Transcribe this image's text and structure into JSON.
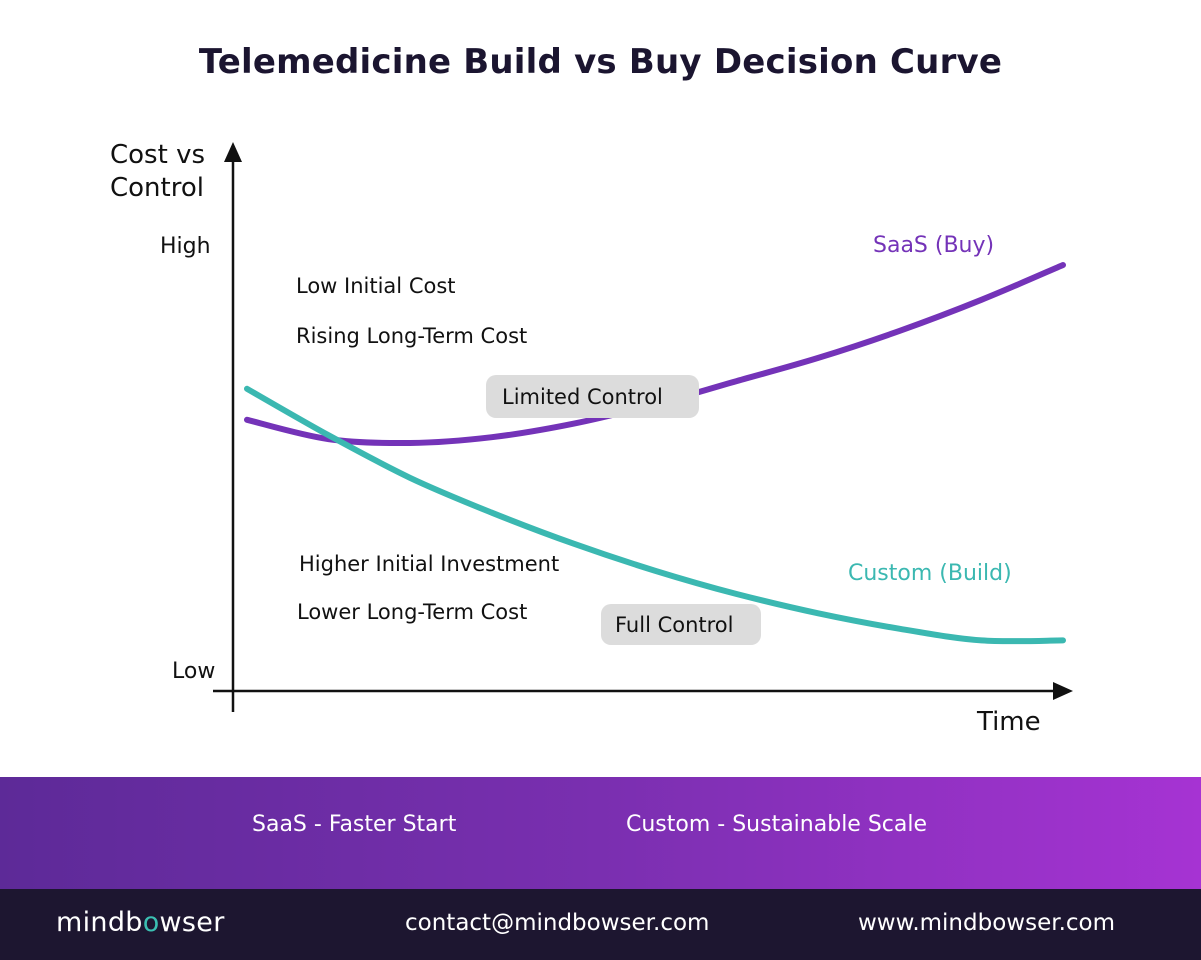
{
  "title": "Telemedicine Build vs Buy Decision Curve",
  "chart_data": {
    "type": "line",
    "ylabel_line1": "Cost vs",
    "ylabel_line2": "Control",
    "xlabel": "Time",
    "ytick_high": "High",
    "ytick_low": "Low",
    "series": [
      {
        "name": "SaaS (Buy)",
        "color": "#7433b8",
        "points": [
          [
            0,
            0.6
          ],
          [
            0.1,
            0.55
          ],
          [
            0.2,
            0.54
          ],
          [
            0.3,
            0.555
          ],
          [
            0.4,
            0.59
          ],
          [
            0.5,
            0.64
          ],
          [
            0.6,
            0.7
          ],
          [
            0.7,
            0.76
          ],
          [
            0.8,
            0.83
          ],
          [
            0.9,
            0.91
          ],
          [
            1.0,
            1.0
          ]
        ]
      },
      {
        "name": "Custom (Build)",
        "color": "#3bb8b1",
        "points": [
          [
            0,
            0.68
          ],
          [
            0.1,
            0.56
          ],
          [
            0.2,
            0.45
          ],
          [
            0.3,
            0.36
          ],
          [
            0.4,
            0.28
          ],
          [
            0.5,
            0.21
          ],
          [
            0.6,
            0.15
          ],
          [
            0.7,
            0.1
          ],
          [
            0.8,
            0.06
          ],
          [
            0.9,
            0.03
          ],
          [
            1.0,
            0.03
          ]
        ]
      }
    ],
    "annotations": {
      "saas_note_1": "Low Initial Cost",
      "saas_note_2": "Rising Long-Term Cost",
      "saas_pill": "Limited Control",
      "custom_note_1": "Higher Initial Investment",
      "custom_note_2": "Lower Long-Term Cost",
      "custom_pill": "Full Control"
    }
  },
  "band": {
    "left": "SaaS - Faster Start",
    "right": "Custom - Sustainable Scale"
  },
  "footer": {
    "logo_pre": "mindb",
    "logo_o": "o",
    "logo_post": "wser",
    "contact": "contact@mindbowser.com",
    "website": "www.mindbowser.com"
  },
  "colors": {
    "title": "#1b1530",
    "saas": "#7433b8",
    "custom": "#3bb8b1",
    "pill": "#dcdcdc",
    "band_start": "#5d2a98",
    "band_end": "#a633d3",
    "footer_bg": "#1d1630"
  }
}
